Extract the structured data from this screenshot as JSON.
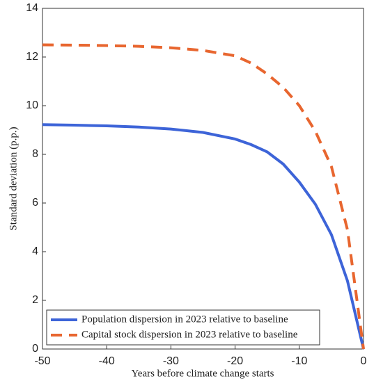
{
  "chart_data": {
    "type": "line",
    "x_label": "Years before climate change starts",
    "y_label": "Standard deviation (p.p.)",
    "x": [
      -50,
      -45,
      -40,
      -35,
      -30,
      -25,
      -20,
      -17.5,
      -15,
      -12.5,
      -10,
      -7.5,
      -5,
      -2.5,
      0
    ],
    "series": [
      {
        "name": "Population dispersion in 2023 relative to baseline",
        "color": "#3d64d8",
        "dash": false,
        "values": [
          9.22,
          9.2,
          9.17,
          9.12,
          9.04,
          8.9,
          8.63,
          8.4,
          8.1,
          7.6,
          6.86,
          5.95,
          4.7,
          2.8,
          0
        ]
      },
      {
        "name": "Capital stock dispersion in 2023 relative to baseline",
        "color": "#e8662f",
        "dash": true,
        "values": [
          12.5,
          12.49,
          12.47,
          12.44,
          12.38,
          12.27,
          12.05,
          11.75,
          11.3,
          10.75,
          10.0,
          8.95,
          7.5,
          4.9,
          0
        ]
      }
    ],
    "xlim": [
      -50,
      0
    ],
    "ylim": [
      0,
      14
    ],
    "xticks": [
      -50,
      -40,
      -30,
      -20,
      -10,
      0
    ],
    "yticks": [
      0,
      2,
      4,
      6,
      8,
      10,
      12,
      14
    ],
    "grid": false,
    "legend": "lower left"
  }
}
